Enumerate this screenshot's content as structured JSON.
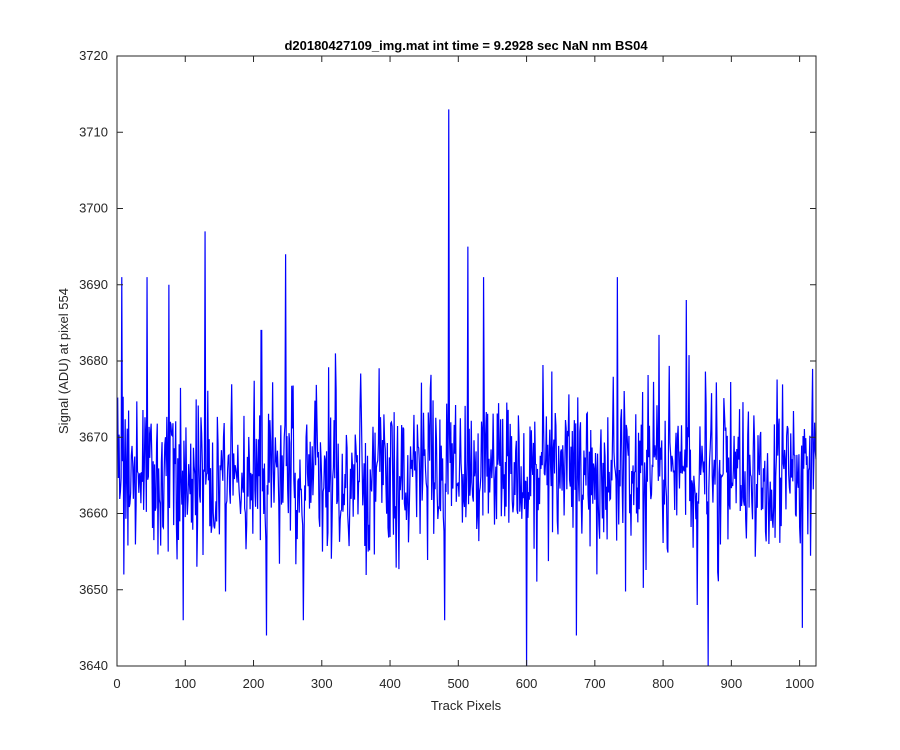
{
  "chart_data": {
    "type": "line",
    "title": "d20180427109_img.mat int time = 9.2928 sec  NaN nm BS04",
    "xlabel": "Track Pixels",
    "ylabel": "Signal (ADU) at pixel 554",
    "xlim": [
      0,
      1024
    ],
    "ylim": [
      3640,
      3720
    ],
    "xticks": [
      0,
      100,
      200,
      300,
      400,
      500,
      600,
      700,
      800,
      900,
      1000
    ],
    "yticks": [
      3640,
      3650,
      3660,
      3670,
      3680,
      3690,
      3700,
      3710,
      3720
    ],
    "grid": false,
    "series": [
      {
        "color": "#0000ff",
        "baseline": 3665.5,
        "noise_sigma": 5.5,
        "point_count": 1024,
        "extremes": [
          {
            "x": 7,
            "y": 3691
          },
          {
            "x": 10,
            "y": 3652
          },
          {
            "x": 44,
            "y": 3691
          },
          {
            "x": 76,
            "y": 3690
          },
          {
            "x": 97,
            "y": 3646
          },
          {
            "x": 129,
            "y": 3697
          },
          {
            "x": 219,
            "y": 3644
          },
          {
            "x": 247,
            "y": 3694
          },
          {
            "x": 273,
            "y": 3646
          },
          {
            "x": 320,
            "y": 3681
          },
          {
            "x": 480,
            "y": 3646
          },
          {
            "x": 486,
            "y": 3713
          },
          {
            "x": 514,
            "y": 3695
          },
          {
            "x": 537,
            "y": 3691
          },
          {
            "x": 600,
            "y": 3640
          },
          {
            "x": 673,
            "y": 3644
          },
          {
            "x": 733,
            "y": 3691
          },
          {
            "x": 834,
            "y": 3688
          },
          {
            "x": 850,
            "y": 3648
          },
          {
            "x": 866,
            "y": 3640
          },
          {
            "x": 1004,
            "y": 3645
          }
        ]
      }
    ]
  }
}
